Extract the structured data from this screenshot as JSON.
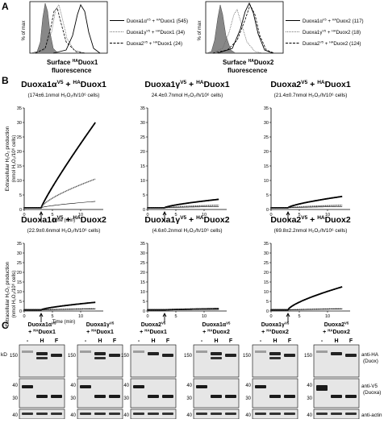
{
  "panelA": {
    "label": "A",
    "ylabel": "% of max",
    "plots": [
      {
        "xlabel_line1": "Surface",
        "xlabel_sup": "HA",
        "xlabel_main": "Duox1",
        "xlabel_line2": "fluorescence",
        "legend": [
          {
            "name": "Duoxa1α",
            "sup1": "V5",
            "mid": " + ",
            "sup2": "HA",
            "tail": "Duox1 (545)",
            "style": "solid"
          },
          {
            "name": "Duoxa1γ",
            "sup1": "V5",
            "mid": " + ",
            "sup2": "HA",
            "tail": "Duox1 (34)",
            "style": "dotted"
          },
          {
            "name": "Duoxa2",
            "sup1": "V5",
            "mid": " + ",
            "sup2": "HA",
            "tail": "Duox1 (24)",
            "style": "dashed"
          }
        ]
      },
      {
        "xlabel_line1": "Surface",
        "xlabel_sup": "HA",
        "xlabel_main": "Duox2",
        "xlabel_line2": "fluorescence",
        "legend": [
          {
            "name": "Duoxa1α",
            "sup1": "V5",
            "mid": " + ",
            "sup2": "HA",
            "tail": "Duox2 (117)",
            "style": "solid"
          },
          {
            "name": "Duoxa1γ",
            "sup1": "V5",
            "mid": " + ",
            "sup2": "HA",
            "tail": "Duox2 (18)",
            "style": "dotted"
          },
          {
            "name": "Duoxa2",
            "sup1": "V5",
            "mid": " + ",
            "sup2": "HA",
            "tail": "Duox2 (124)",
            "style": "dashed"
          }
        ]
      }
    ]
  },
  "panelB": {
    "label": "B",
    "ylabel_line1": "Extracellular H₂O₂ production",
    "ylabel_line2": "(nmol H₂O₂/10⁶ cells)",
    "xlabel": "Time (min)",
    "chart_data": [
      {
        "type": "line",
        "title_a": "Duoxa1α",
        "title_sup_a": "V5",
        "title_b": " + ",
        "title_sup_b": "HA",
        "title_c": "Duox1",
        "rate": "(174±6.1nmol H₂O₂/h/10⁶ cells)",
        "xlim": [
          0,
          14
        ],
        "ylim": [
          0,
          35
        ],
        "xticks": [
          0,
          5,
          10
        ],
        "yticks": [
          0,
          5,
          10,
          15,
          20,
          25,
          30,
          35
        ],
        "arrow_x": 3,
        "series": [
          {
            "style": "filled",
            "end": 30
          },
          {
            "style": "open",
            "end": 10.5
          },
          {
            "style": "thin",
            "end": 2.8
          }
        ]
      },
      {
        "type": "line",
        "title_a": "Duoxa1γ",
        "title_sup_a": "V5",
        "title_b": " + ",
        "title_sup_b": "HA",
        "title_c": "Duox1",
        "rate": "24.4±0.7nmol H₂O₂/h/10⁶ cells)",
        "xlim": [
          0,
          14
        ],
        "ylim": [
          0,
          35
        ],
        "xticks": [
          0,
          5,
          10
        ],
        "yticks": [
          0,
          5,
          10,
          15,
          20,
          25,
          30,
          35
        ],
        "arrow_x": 3,
        "series": [
          {
            "style": "filled",
            "end": 3.5
          },
          {
            "style": "open",
            "end": 1.5
          },
          {
            "style": "thin",
            "end": 1.0
          }
        ]
      },
      {
        "type": "line",
        "title_a": "Duoxa2",
        "title_sup_a": "V5",
        "title_b": " + ",
        "title_sup_b": "HA",
        "title_c": "Duox1",
        "rate": "(21.4±0.7nmol H₂O₂/h/10⁶ cells)",
        "xlim": [
          0,
          14
        ],
        "ylim": [
          0,
          35
        ],
        "xticks": [
          0,
          5,
          10
        ],
        "yticks": [
          0,
          5,
          10,
          15,
          20,
          25,
          30,
          35
        ],
        "arrow_x": 3,
        "series": [
          {
            "style": "filled",
            "end": 4.5
          },
          {
            "style": "open",
            "end": 1.5
          },
          {
            "style": "thin",
            "end": 1.0
          }
        ]
      },
      {
        "type": "line",
        "title_a": "Duoxa1α",
        "title_sup_a": "V5",
        "title_b": " + ",
        "title_sup_b": "HA",
        "title_c": "Duox2",
        "rate": "(22.9±0.6nmol H₂O₂/h/10⁶ cells)",
        "xlim": [
          0,
          14
        ],
        "ylim": [
          0,
          35
        ],
        "xticks": [
          0,
          5,
          10
        ],
        "yticks": [
          0,
          5,
          10,
          15,
          20,
          25,
          30,
          35
        ],
        "arrow_x": 3,
        "series": [
          {
            "style": "filled",
            "end": 4.5
          },
          {
            "style": "open",
            "end": 1.2
          },
          {
            "style": "thin",
            "end": 1.0
          }
        ]
      },
      {
        "type": "line",
        "title_a": "Duoxa1γ",
        "title_sup_a": "V5",
        "title_b": " + ",
        "title_sup_b": "HA",
        "title_c": "Duox2",
        "rate": "(4.6±0.2nmol H₂O₂/h/10⁶ cells)",
        "xlim": [
          0,
          14
        ],
        "ylim": [
          0,
          35
        ],
        "xticks": [
          0,
          5,
          10
        ],
        "yticks": [
          0,
          5,
          10,
          15,
          20,
          25,
          30,
          35
        ],
        "arrow_x": 3,
        "series": [
          {
            "style": "filled",
            "end": 1.2
          },
          {
            "style": "open",
            "end": 1.0
          },
          {
            "style": "thin",
            "end": 0.8
          }
        ]
      },
      {
        "type": "line",
        "title_a": "Duoxa2",
        "title_sup_a": "V5",
        "title_b": " + ",
        "title_sup_b": "HA",
        "title_c": "Duox2",
        "rate": "(69.8±2.2nmol H₂O₂/h/10⁶ cells)",
        "xlim": [
          0,
          14
        ],
        "ylim": [
          0,
          35
        ],
        "xticks": [
          0,
          5,
          10
        ],
        "yticks": [
          0,
          5,
          10,
          15,
          20,
          25,
          30,
          35
        ],
        "arrow_x": 3,
        "series": [
          {
            "style": "filled",
            "end": 12.5
          },
          {
            "style": "open",
            "end": 1.2
          },
          {
            "style": "thin",
            "end": 1.0
          }
        ]
      }
    ]
  },
  "panelC": {
    "label": "C",
    "kd": "kD",
    "lanes": [
      "-",
      "H",
      "F"
    ],
    "blots": [
      {
        "t1": "Duoxa1α",
        "s1": "V5",
        "t2": "+ ",
        "s2": "HA",
        "t3": "Duox1",
        "m1": "150",
        "m2a": "40",
        "m2b": "30",
        "m3": "40"
      },
      {
        "t1": "Duoxa1γ",
        "s1": "V5",
        "t2": "+ ",
        "s2": "HA",
        "t3": "Duox1",
        "m1": "150",
        "m2a": "40",
        "m2b": "30",
        "m3": "40"
      },
      {
        "t1": "Duoxa2",
        "s1": "V5",
        "t2": "+ ",
        "s2": "HA",
        "t3": "Duox1",
        "m1": "150",
        "m2a": "40",
        "m2b": "30",
        "m3": "40"
      },
      {
        "t1": "Duoxa1α",
        "s1": "V5",
        "t2": "+ ",
        "s2": "HA",
        "t3": "Duox2",
        "m1": "150",
        "m2a": "40",
        "m2b": "30",
        "m3": "40"
      },
      {
        "t1": "Duoxa1γ",
        "s1": "V5",
        "t2": "+ ",
        "s2": "HA",
        "t3": "Duox2",
        "m1": "150",
        "m2a": "40",
        "m2b": "30",
        "m3": "40"
      },
      {
        "t1": "Duoxa2",
        "s1": "V5",
        "t2": "+ ",
        "s2": "HA",
        "t3": "Duox2",
        "m1": "150",
        "m2a": "40",
        "m2b": "30",
        "m3": "40"
      }
    ],
    "row_labels": [
      {
        "l1": "anti-HA",
        "l2": "(Duox)"
      },
      {
        "l1": "anti-V5",
        "l2": "(Duoxa)"
      },
      {
        "l1": "anti-actin",
        "l2": ""
      }
    ]
  }
}
